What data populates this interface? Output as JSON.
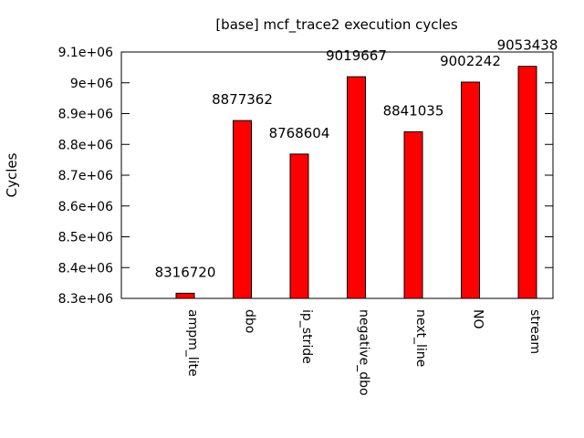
{
  "chart_data": {
    "type": "bar",
    "title": "[base] mcf_trace2 execution cycles",
    "xlabel": "",
    "ylabel": "Cycles",
    "ylim": [
      8300000,
      9100000
    ],
    "grid": false,
    "legend": "none",
    "bar_color": "#ff0000",
    "yticks": [
      {
        "value": 8300000,
        "label": "8.3e+06"
      },
      {
        "value": 8400000,
        "label": "8.4e+06"
      },
      {
        "value": 8500000,
        "label": "8.5e+06"
      },
      {
        "value": 8600000,
        "label": "8.6e+06"
      },
      {
        "value": 8700000,
        "label": "8.7e+06"
      },
      {
        "value": 8800000,
        "label": "8.8e+06"
      },
      {
        "value": 8900000,
        "label": "8.9e+06"
      },
      {
        "value": 9000000,
        "label": "9e+06"
      },
      {
        "value": 9100000,
        "label": "9.1e+06"
      }
    ],
    "categories": [
      "ampm_lite",
      "dbo",
      "ip_stride",
      "negative_dbo",
      "next_line",
      "NO",
      "stream"
    ],
    "values": [
      8316720,
      8877362,
      8768604,
      9019667,
      8841035,
      9002242,
      9053438
    ],
    "value_labels": [
      "8316720",
      "8877362",
      "8768604",
      "9019667",
      "8841035",
      "9002242",
      "9053438"
    ]
  }
}
